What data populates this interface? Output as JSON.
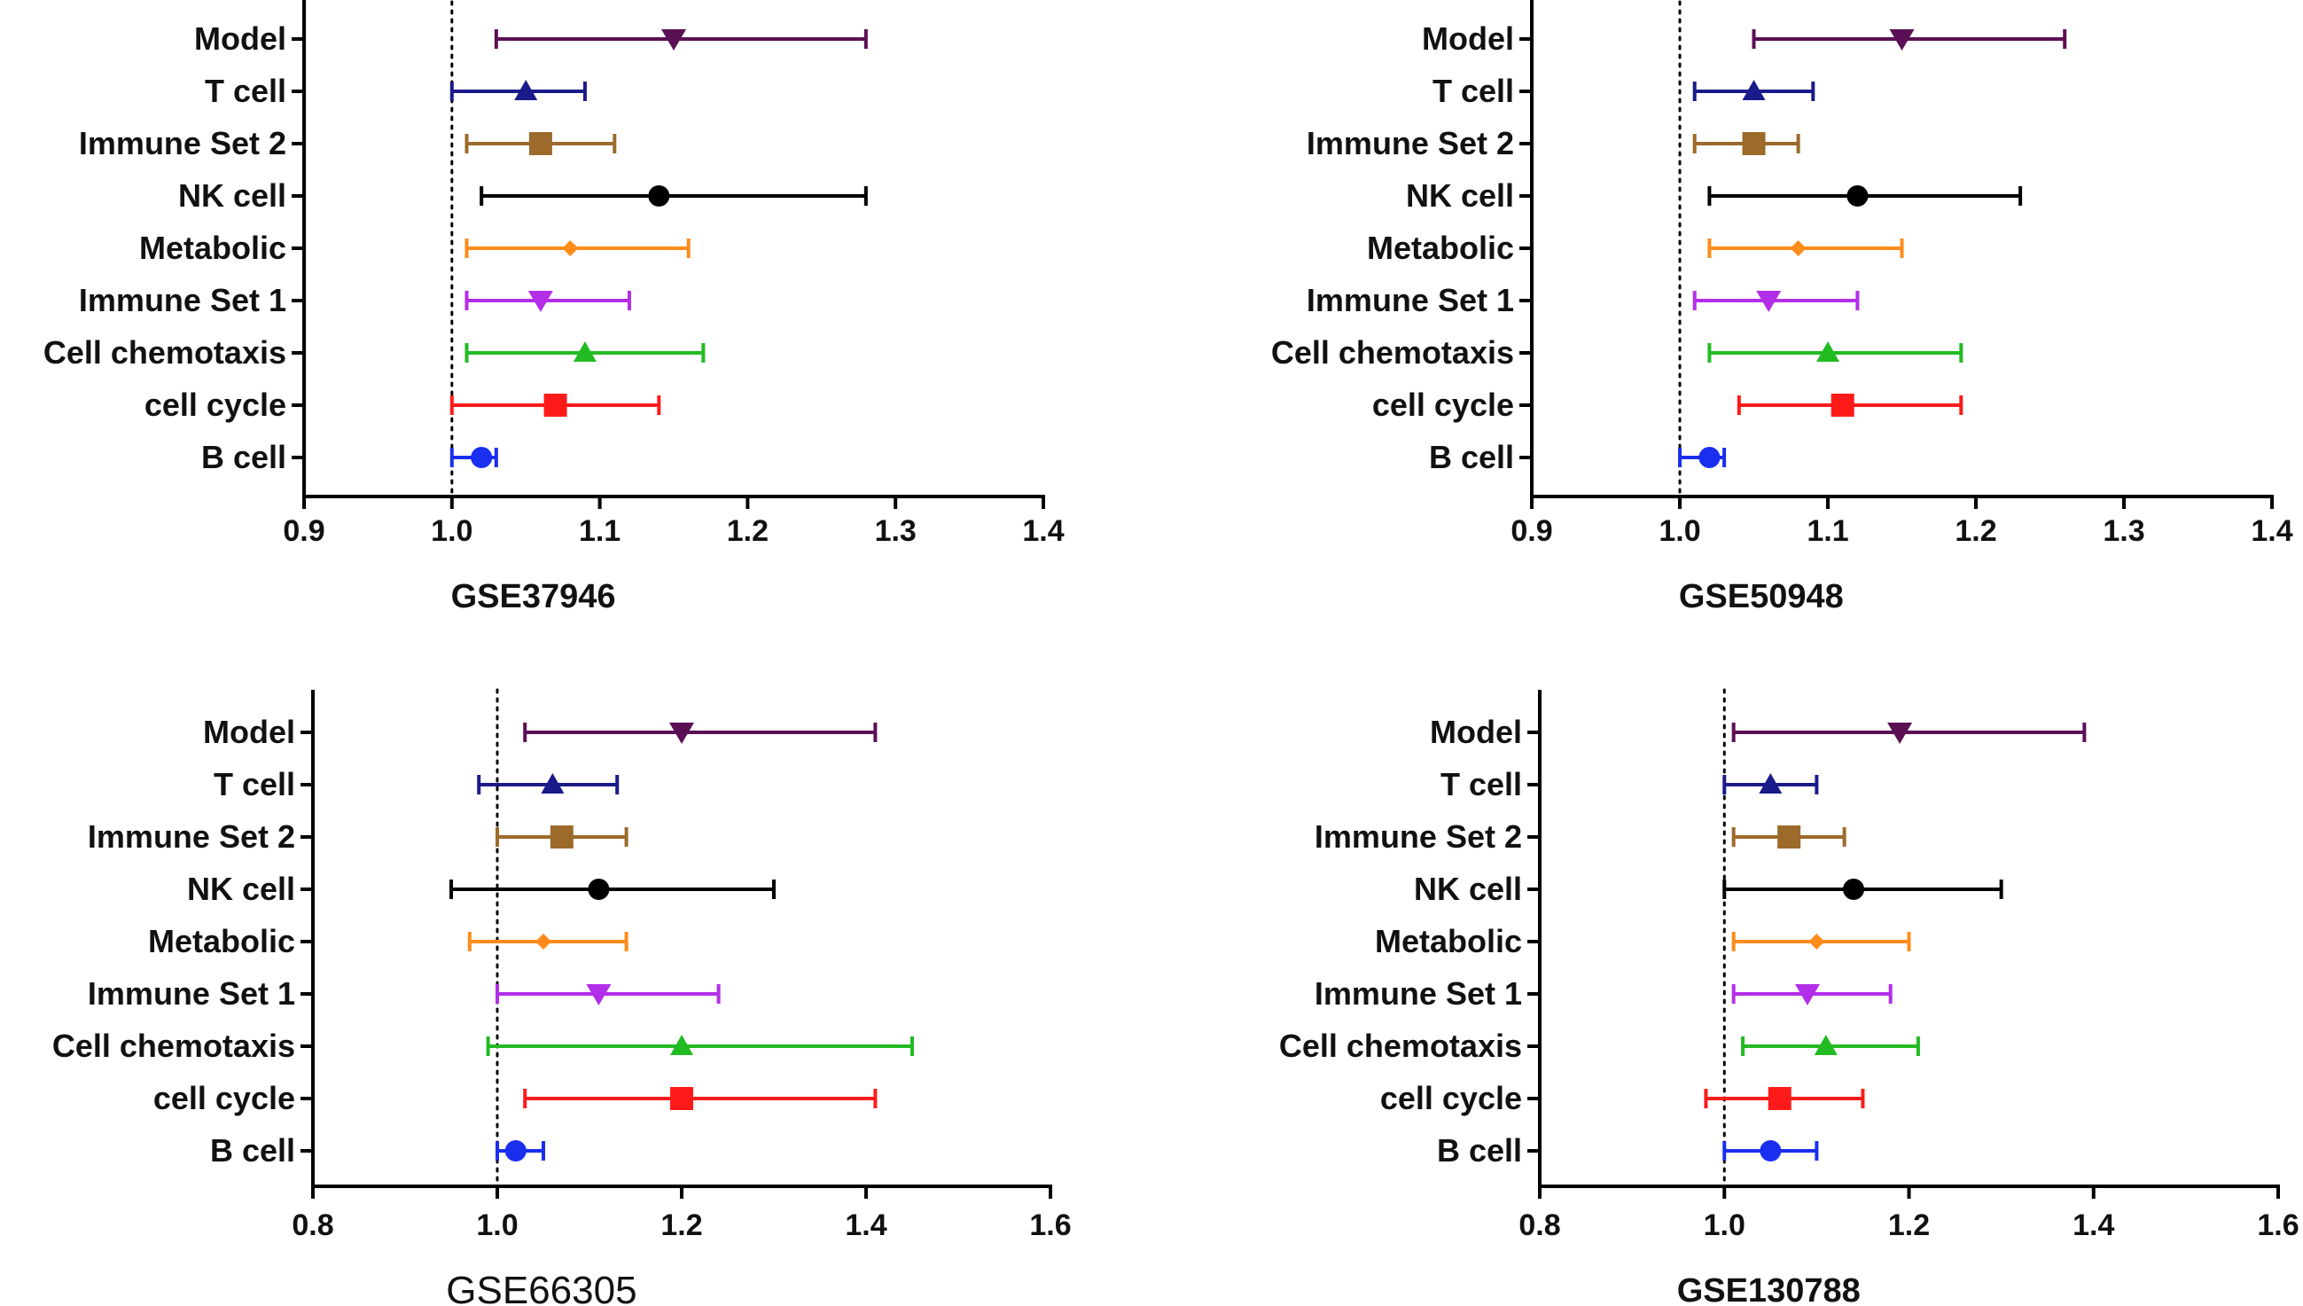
{
  "chart_data": [
    {
      "type": "forest",
      "panel": "top-left",
      "xlabel": "GSE37946",
      "xlim": [
        0.9,
        1.4
      ],
      "xticks": [
        "0.9",
        "1.0",
        "1.1",
        "1.2",
        "1.3",
        "1.4"
      ],
      "reference_line": 1.0,
      "rows": [
        {
          "label": "Model",
          "est": 1.15,
          "lo": 1.03,
          "hi": 1.28,
          "marker": "triangle-down",
          "color": "#5b0f55"
        },
        {
          "label": "T cell",
          "est": 1.05,
          "lo": 1.0,
          "hi": 1.09,
          "marker": "triangle-up",
          "color": "#1a1a8a"
        },
        {
          "label": "Immune Set 2",
          "est": 1.06,
          "lo": 1.01,
          "hi": 1.11,
          "marker": "square",
          "color": "#9c6a2a"
        },
        {
          "label": "NK cell",
          "est": 1.14,
          "lo": 1.02,
          "hi": 1.28,
          "marker": "circle",
          "color": "#000000"
        },
        {
          "label": "Metabolic",
          "est": 1.08,
          "lo": 1.01,
          "hi": 1.16,
          "marker": "diamond",
          "color": "#ff8c1a"
        },
        {
          "label": "Immune Set 1",
          "est": 1.06,
          "lo": 1.01,
          "hi": 1.12,
          "marker": "triangle-down",
          "color": "#b32ee8"
        },
        {
          "label": "Cell chemotaxis",
          "est": 1.09,
          "lo": 1.01,
          "hi": 1.17,
          "marker": "triangle-up",
          "color": "#22bb22"
        },
        {
          "label": "cell cycle",
          "est": 1.07,
          "lo": 1.0,
          "hi": 1.14,
          "marker": "square",
          "color": "#ff1a1a"
        },
        {
          "label": "B cell",
          "est": 1.02,
          "lo": 1.0,
          "hi": 1.03,
          "marker": "circle",
          "color": "#1a2ef0"
        }
      ]
    },
    {
      "type": "forest",
      "panel": "top-right",
      "xlabel": "GSE50948",
      "xlim": [
        0.9,
        1.4
      ],
      "xticks": [
        "0.9",
        "1.0",
        "1.1",
        "1.2",
        "1.3",
        "1.4"
      ],
      "reference_line": 1.0,
      "rows": [
        {
          "label": "Model",
          "est": 1.15,
          "lo": 1.05,
          "hi": 1.26,
          "marker": "triangle-down",
          "color": "#5b0f55"
        },
        {
          "label": "T cell",
          "est": 1.05,
          "lo": 1.01,
          "hi": 1.09,
          "marker": "triangle-up",
          "color": "#1a1a8a"
        },
        {
          "label": "Immune Set 2",
          "est": 1.05,
          "lo": 1.01,
          "hi": 1.08,
          "marker": "square",
          "color": "#9c6a2a"
        },
        {
          "label": "NK cell",
          "est": 1.12,
          "lo": 1.02,
          "hi": 1.23,
          "marker": "circle",
          "color": "#000000"
        },
        {
          "label": "Metabolic",
          "est": 1.08,
          "lo": 1.02,
          "hi": 1.15,
          "marker": "diamond",
          "color": "#ff8c1a"
        },
        {
          "label": "Immune Set 1",
          "est": 1.06,
          "lo": 1.01,
          "hi": 1.12,
          "marker": "triangle-down",
          "color": "#b32ee8"
        },
        {
          "label": "Cell chemotaxis",
          "est": 1.1,
          "lo": 1.02,
          "hi": 1.19,
          "marker": "triangle-up",
          "color": "#22bb22"
        },
        {
          "label": "cell cycle",
          "est": 1.11,
          "lo": 1.04,
          "hi": 1.19,
          "marker": "square",
          "color": "#ff1a1a"
        },
        {
          "label": "B cell",
          "est": 1.02,
          "lo": 1.0,
          "hi": 1.03,
          "marker": "circle",
          "color": "#1a2ef0"
        }
      ]
    },
    {
      "type": "forest",
      "panel": "bottom-left",
      "xlabel": "GSE66305",
      "xlim": [
        0.8,
        1.6
      ],
      "xticks": [
        "0.8",
        "1.0",
        "1.2",
        "1.4",
        "1.6"
      ],
      "reference_line": 1.0,
      "rows": [
        {
          "label": "Model",
          "est": 1.2,
          "lo": 1.03,
          "hi": 1.41,
          "marker": "triangle-down",
          "color": "#5b0f55"
        },
        {
          "label": "T cell",
          "est": 1.06,
          "lo": 0.98,
          "hi": 1.13,
          "marker": "triangle-up",
          "color": "#1a1a8a"
        },
        {
          "label": "Immune Set 2",
          "est": 1.07,
          "lo": 1.0,
          "hi": 1.14,
          "marker": "square",
          "color": "#9c6a2a"
        },
        {
          "label": "NK cell",
          "est": 1.11,
          "lo": 0.95,
          "hi": 1.3,
          "marker": "circle",
          "color": "#000000"
        },
        {
          "label": "Metabolic",
          "est": 1.05,
          "lo": 0.97,
          "hi": 1.14,
          "marker": "diamond",
          "color": "#ff8c1a"
        },
        {
          "label": "Immune Set 1",
          "est": 1.11,
          "lo": 1.0,
          "hi": 1.24,
          "marker": "triangle-down",
          "color": "#b32ee8"
        },
        {
          "label": "Cell chemotaxis",
          "est": 1.2,
          "lo": 0.99,
          "hi": 1.45,
          "marker": "triangle-up",
          "color": "#22bb22"
        },
        {
          "label": "cell cycle",
          "est": 1.2,
          "lo": 1.03,
          "hi": 1.41,
          "marker": "square",
          "color": "#ff1a1a"
        },
        {
          "label": "B cell",
          "est": 1.02,
          "lo": 1.0,
          "hi": 1.05,
          "marker": "circle",
          "color": "#1a2ef0"
        }
      ]
    },
    {
      "type": "forest",
      "panel": "bottom-right",
      "xlabel": "GSE130788",
      "xlim": [
        0.8,
        1.6
      ],
      "xticks": [
        "0.8",
        "1.0",
        "1.2",
        "1.4",
        "1.6"
      ],
      "reference_line": 1.0,
      "rows": [
        {
          "label": "Model",
          "est": 1.19,
          "lo": 1.01,
          "hi": 1.39,
          "marker": "triangle-down",
          "color": "#5b0f55"
        },
        {
          "label": "T cell",
          "est": 1.05,
          "lo": 1.0,
          "hi": 1.1,
          "marker": "triangle-up",
          "color": "#1a1a8a"
        },
        {
          "label": "Immune Set 2",
          "est": 1.07,
          "lo": 1.01,
          "hi": 1.13,
          "marker": "square",
          "color": "#9c6a2a"
        },
        {
          "label": "NK cell",
          "est": 1.14,
          "lo": 1.0,
          "hi": 1.3,
          "marker": "circle",
          "color": "#000000"
        },
        {
          "label": "Metabolic",
          "est": 1.1,
          "lo": 1.01,
          "hi": 1.2,
          "marker": "diamond",
          "color": "#ff8c1a"
        },
        {
          "label": "Immune Set 1",
          "est": 1.09,
          "lo": 1.01,
          "hi": 1.18,
          "marker": "triangle-down",
          "color": "#b32ee8"
        },
        {
          "label": "Cell chemotaxis",
          "est": 1.11,
          "lo": 1.02,
          "hi": 1.21,
          "marker": "triangle-up",
          "color": "#22bb22"
        },
        {
          "label": "cell cycle",
          "est": 1.06,
          "lo": 0.98,
          "hi": 1.15,
          "marker": "square",
          "color": "#ff1a1a"
        },
        {
          "label": "B cell",
          "est": 1.05,
          "lo": 1.0,
          "hi": 1.1,
          "marker": "circle",
          "color": "#1a2ef0"
        }
      ]
    }
  ]
}
